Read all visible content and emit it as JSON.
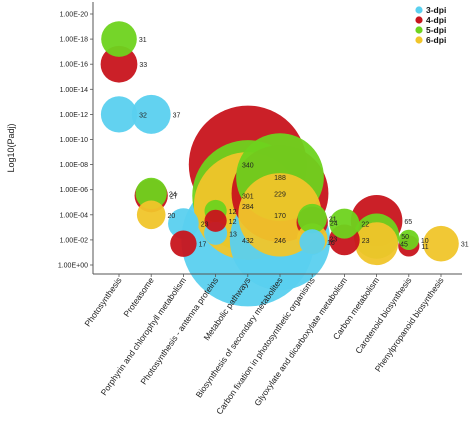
{
  "chart_data": {
    "type": "scatter",
    "subtype": "bubble",
    "title": "",
    "ylabel": "Log10(Padj)",
    "y_scale": "log",
    "y_reversed": true,
    "y_ticks": [
      "1.00E-20",
      "1.00E-18",
      "1.00E-16",
      "1.00E-14",
      "1.00E-12",
      "1.00E-10",
      "1.00E-08",
      "1.00E-06",
      "1.00E-04",
      "1.00E-02",
      "1.00E+00"
    ],
    "categories": [
      "Photosynthesis",
      "Proteasome",
      "Porphyrin and chlorophyll metabolism",
      "Photosynthesis - antenna proteins",
      "Metabolic pathways",
      "Biosynthesis of secondary metabolites",
      "Carbon fixation in photosynthetic organisms",
      "Glyoxylate and dicarboxylate metabolism",
      "Carbon metabolism",
      "Carotenoid biosynthesis",
      "Phenylpropanoid biosynthesis"
    ],
    "legend": {
      "position": "top-right",
      "items": [
        "3-dpi",
        "4-dpi",
        "5-dpi",
        "6-dpi"
      ]
    },
    "colors": {
      "3-dpi": "#5ad0ef",
      "4-dpi": "#c8141c",
      "5-dpi": "#6ed31e",
      "6-dpi": "#f0c52a"
    },
    "points": [
      {
        "category": "Photosynthesis",
        "series": "4-dpi",
        "padj": 1e-16,
        "count": 33
      },
      {
        "category": "Photosynthesis",
        "series": "5-dpi",
        "padj": 1e-18,
        "count": 31
      },
      {
        "category": "Photosynthesis",
        "series": "3-dpi",
        "padj": 1e-12,
        "count": 32
      },
      {
        "category": "Proteasome",
        "series": "3-dpi",
        "padj": 1e-12,
        "count": 37
      },
      {
        "category": "Proteasome",
        "series": "4-dpi",
        "padj": 3e-06,
        "count": 27
      },
      {
        "category": "Proteasome",
        "series": "5-dpi",
        "padj": 2e-06,
        "count": 24
      },
      {
        "category": "Proteasome",
        "series": "6-dpi",
        "padj": 0.0001,
        "count": 20
      },
      {
        "category": "Porphyrin and chlorophyll metabolism",
        "series": "3-dpi",
        "padj": 0.0005,
        "count": 23
      },
      {
        "category": "Porphyrin and chlorophyll metabolism",
        "series": "4-dpi",
        "padj": 0.02,
        "count": 17
      },
      {
        "category": "Photosynthesis - antenna proteins",
        "series": "5-dpi",
        "padj": 5e-05,
        "count": 12
      },
      {
        "category": "Photosynthesis - antenna proteins",
        "series": "4-dpi",
        "padj": 0.0003,
        "count": 12
      },
      {
        "category": "Photosynthesis - antenna proteins",
        "series": "3-dpi",
        "padj": 0.003,
        "count": 13
      },
      {
        "category": "Metabolic pathways",
        "series": "4-dpi",
        "padj": 1e-08,
        "count": 340
      },
      {
        "category": "Metabolic pathways",
        "series": "6-dpi",
        "padj": 2e-05,
        "count": 284
      },
      {
        "category": "Metabolic pathways",
        "series": "5-dpi",
        "padj": 3e-06,
        "count": 301
      },
      {
        "category": "Metabolic pathways",
        "series": "3-dpi",
        "padj": 0.01,
        "count": 432
      },
      {
        "category": "Biosynthesis of secondary metabolites",
        "series": "4-dpi",
        "padj": 2e-06,
        "count": 229
      },
      {
        "category": "Biosynthesis of secondary metabolites",
        "series": "5-dpi",
        "padj": 1e-07,
        "count": 188
      },
      {
        "category": "Biosynthesis of secondary metabolites",
        "series": "6-dpi",
        "padj": 0.0001,
        "count": 170
      },
      {
        "category": "Biosynthesis of secondary metabolites",
        "series": "3-dpi",
        "padj": 0.01,
        "count": 246
      },
      {
        "category": "Carbon fixation in photosynthetic organisms",
        "series": "5-dpi",
        "padj": 0.0002,
        "count": 21
      },
      {
        "category": "Carbon fixation in photosynthetic organisms",
        "series": "4-dpi",
        "padj": 0.0004,
        "count": 24
      },
      {
        "category": "Carbon fixation in photosynthetic organisms",
        "series": "6-dpi",
        "padj": 0.008,
        "count": 23
      },
      {
        "category": "Carbon fixation in photosynthetic organisms",
        "series": "3-dpi",
        "padj": 0.015,
        "count": 16
      },
      {
        "category": "Glyoxylate and dicarboxylate metabolism",
        "series": "5-dpi",
        "padj": 0.0005,
        "count": 22
      },
      {
        "category": "Glyoxylate and dicarboxylate metabolism",
        "series": "4-dpi",
        "padj": 0.01,
        "count": 23
      },
      {
        "category": "Carbon metabolism",
        "series": "4-dpi",
        "padj": 0.0003,
        "count": 65
      },
      {
        "category": "Carbon metabolism",
        "series": "5-dpi",
        "padj": 0.005,
        "count": 50
      },
      {
        "category": "Carbon metabolism",
        "series": "6-dpi",
        "padj": 0.02,
        "count": 45
      },
      {
        "category": "Carotenoid biosynthesis",
        "series": "5-dpi",
        "padj": 0.01,
        "count": 10
      },
      {
        "category": "Carotenoid biosynthesis",
        "series": "4-dpi",
        "padj": 0.03,
        "count": 11
      },
      {
        "category": "Phenylpropanoid biosynthesis",
        "series": "6-dpi",
        "padj": 0.02,
        "count": 31
      }
    ]
  }
}
